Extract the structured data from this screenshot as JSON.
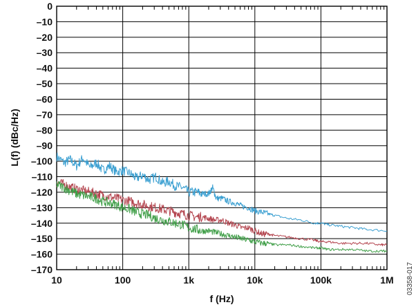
{
  "chart_data": {
    "type": "line",
    "title": "",
    "xlabel": "f (Hz)",
    "ylabel": "L(f) (dBc/Hz)",
    "xscale": "log",
    "xlim": [
      10,
      1000000
    ],
    "ylim": [
      -170,
      0
    ],
    "grid": true,
    "legend": "none",
    "xticks": [
      {
        "value": 10,
        "label": "10"
      },
      {
        "value": 100,
        "label": "100"
      },
      {
        "value": 1000,
        "label": "1k"
      },
      {
        "value": 10000,
        "label": "10k"
      },
      {
        "value": 100000,
        "label": "100k"
      },
      {
        "value": 1000000,
        "label": "1M"
      }
    ],
    "yticks": [
      {
        "value": 0,
        "label": "0"
      },
      {
        "value": -10,
        "label": "–10"
      },
      {
        "value": -20,
        "label": "–20"
      },
      {
        "value": -30,
        "label": "–30"
      },
      {
        "value": -40,
        "label": "–40"
      },
      {
        "value": -50,
        "label": "–50"
      },
      {
        "value": -60,
        "label": "–60"
      },
      {
        "value": -70,
        "label": "–70"
      },
      {
        "value": -80,
        "label": "–80"
      },
      {
        "value": -90,
        "label": "–90"
      },
      {
        "value": -100,
        "label": "–100"
      },
      {
        "value": -110,
        "label": "–110"
      },
      {
        "value": -120,
        "label": "–120"
      },
      {
        "value": -130,
        "label": "–130"
      },
      {
        "value": -140,
        "label": "–140"
      },
      {
        "value": -150,
        "label": "–150"
      },
      {
        "value": -160,
        "label": "–160"
      },
      {
        "value": -170,
        "label": "–170"
      }
    ],
    "series": [
      {
        "color": "#3a9fd1",
        "x": [
          10,
          13,
          16,
          20,
          25,
          32,
          40,
          50,
          63,
          80,
          100,
          130,
          160,
          200,
          250,
          320,
          400,
          500,
          630,
          800,
          1000,
          1300,
          1600,
          2000,
          2300,
          2600,
          3200,
          4000,
          5000,
          6300,
          8000,
          10000,
          13000,
          16000,
          20000,
          32000,
          50000,
          80000,
          100000,
          130000,
          200000,
          320000,
          500000,
          1000000
        ],
        "y": [
          -97,
          -101,
          -99,
          -103,
          -98,
          -104,
          -101,
          -106,
          -103,
          -107,
          -106,
          -108,
          -111,
          -109,
          -112,
          -110,
          -114,
          -113,
          -116,
          -117,
          -120,
          -120,
          -121,
          -121,
          -117,
          -124,
          -124,
          -126,
          -127,
          -129,
          -130,
          -132,
          -133,
          -134,
          -135,
          -137,
          -138,
          -140,
          -140,
          -141,
          -142,
          -143,
          -144,
          -145
        ]
      },
      {
        "color": "#b3444e",
        "x": [
          10,
          13,
          16,
          20,
          25,
          32,
          40,
          50,
          63,
          80,
          100,
          130,
          160,
          200,
          250,
          320,
          400,
          500,
          630,
          800,
          1000,
          1300,
          1600,
          2000,
          2500,
          3200,
          4000,
          5000,
          6300,
          8000,
          10000,
          13000,
          16000,
          20000,
          32000,
          50000,
          80000,
          100000,
          130000,
          200000,
          320000,
          500000,
          800000,
          1000000
        ],
        "y": [
          -114,
          -115,
          -117,
          -118,
          -119,
          -120,
          -121,
          -122,
          -123,
          -124,
          -125,
          -126,
          -127,
          -128,
          -129,
          -130,
          -131,
          -132,
          -133,
          -134,
          -135,
          -136,
          -136,
          -137,
          -138,
          -138,
          -140,
          -141,
          -143,
          -143,
          -145,
          -147,
          -147,
          -148,
          -149,
          -150,
          -151,
          -152,
          -152,
          -153,
          -153,
          -153,
          -154,
          -154
        ]
      },
      {
        "color": "#3f9e47",
        "x": [
          10,
          13,
          16,
          20,
          25,
          32,
          40,
          50,
          63,
          80,
          100,
          130,
          160,
          200,
          250,
          320,
          400,
          500,
          630,
          800,
          1000,
          1300,
          1600,
          2000,
          2500,
          3200,
          4000,
          5000,
          6300,
          8000,
          10000,
          13000,
          16000,
          20000,
          32000,
          50000,
          80000,
          100000,
          130000,
          200000,
          320000,
          500000,
          800000,
          1000000
        ],
        "y": [
          -115,
          -117,
          -119,
          -121,
          -122,
          -123,
          -124,
          -126,
          -127,
          -128,
          -130,
          -131,
          -133,
          -134,
          -135,
          -137,
          -138,
          -139,
          -140,
          -141,
          -143,
          -144,
          -145,
          -145,
          -146,
          -147,
          -148,
          -149,
          -150,
          -151,
          -152,
          -153,
          -153,
          -154,
          -154,
          -155,
          -156,
          -156,
          -157,
          -157,
          -157,
          -158,
          -158,
          -158
        ]
      }
    ]
  },
  "figure_id": "03358-017"
}
